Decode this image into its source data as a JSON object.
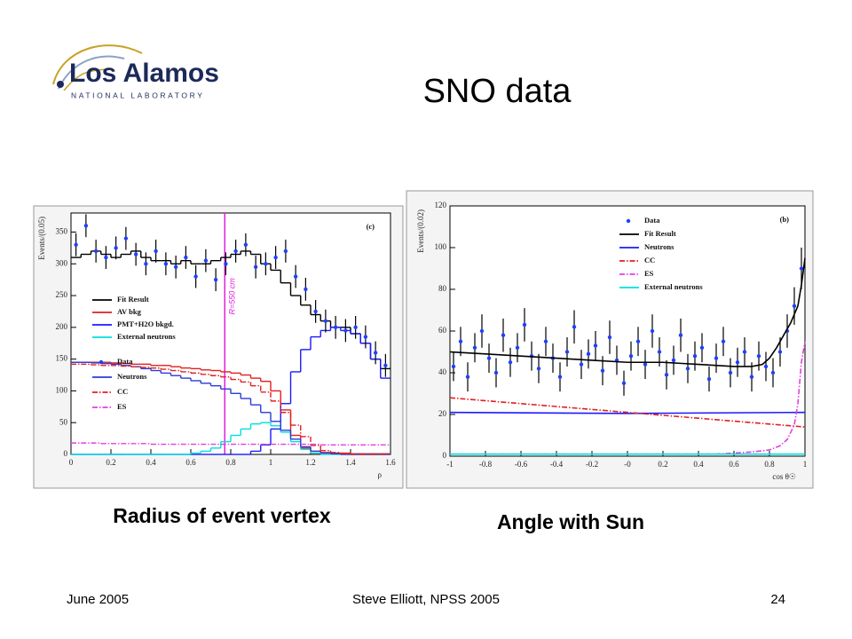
{
  "header": {
    "logo_name": "Los Alamos",
    "logo_sub": "NATIONAL LABORATORY",
    "title": "SNO data"
  },
  "chart_data": [
    {
      "type": "histogram",
      "panel_label": "(c)",
      "x_label": "ρ",
      "y_label": "Events/(0.05)",
      "xlim": [
        0,
        1.6
      ],
      "ylim": [
        0,
        380
      ],
      "xticks": [
        0,
        0.2,
        0.4,
        0.6,
        0.8,
        1,
        1.2,
        1.4,
        1.6
      ],
      "yticks": [
        0,
        50,
        100,
        150,
        200,
        250,
        300,
        350
      ],
      "bins": [
        0,
        0.05,
        0.1,
        0.15,
        0.2,
        0.25,
        0.3,
        0.35,
        0.4,
        0.45,
        0.5,
        0.55,
        0.6,
        0.65,
        0.7,
        0.75,
        0.8,
        0.85,
        0.9,
        0.95,
        1,
        1.05,
        1.1,
        1.15,
        1.2,
        1.25,
        1.3,
        1.35,
        1.4,
        1.45,
        1.5,
        1.55,
        1.6
      ],
      "annotations": [
        {
          "text": "R=550 cm",
          "x": 0.77,
          "color": "#e020e0"
        }
      ],
      "series": [
        {
          "name": "Fit Result",
          "color": "#000000",
          "style": "solid",
          "values": [
            310,
            315,
            320,
            315,
            310,
            315,
            320,
            310,
            305,
            305,
            300,
            305,
            300,
            300,
            305,
            310,
            315,
            320,
            315,
            300,
            290,
            270,
            250,
            235,
            220,
            210,
            200,
            200,
            190,
            175,
            150,
            135
          ]
        },
        {
          "name": "AV bkg",
          "color": "#e02020",
          "style": "solid",
          "values": [
            145,
            145,
            145,
            145,
            144,
            143,
            142,
            142,
            140,
            140,
            138,
            136,
            135,
            133,
            132,
            130,
            128,
            125,
            120,
            115,
            100,
            70,
            30,
            10,
            5,
            3,
            2,
            2,
            1,
            1,
            1,
            1
          ]
        },
        {
          "name": "PMT+H2O bkgd.",
          "color": "#1a1aff",
          "style": "solid",
          "values": [
            0,
            0,
            0,
            0,
            0,
            0,
            0,
            0,
            0,
            0,
            0,
            0,
            0,
            0,
            0,
            0,
            0,
            0,
            5,
            15,
            40,
            80,
            130,
            165,
            185,
            195,
            200,
            195,
            190,
            175,
            150,
            120
          ]
        },
        {
          "name": "External neutrons",
          "color": "#00e0e0",
          "style": "solid",
          "values": [
            0,
            0,
            0,
            0,
            0,
            0,
            0,
            0,
            0,
            0,
            0,
            0,
            2,
            5,
            10,
            20,
            30,
            40,
            48,
            50,
            45,
            35,
            20,
            8,
            2,
            0,
            0,
            0,
            0,
            0,
            0,
            0
          ]
        },
        {
          "name": "Data",
          "color": "#2040ff",
          "style": "points",
          "values": [
            330,
            360,
            320,
            310,
            325,
            340,
            315,
            300,
            320,
            300,
            295,
            310,
            280,
            305,
            275,
            300,
            320,
            330,
            295,
            300,
            310,
            320,
            280,
            260,
            225,
            210,
            200,
            195,
            200,
            185,
            160,
            140
          ],
          "errors": [
            18,
            18,
            18,
            18,
            18,
            18,
            18,
            18,
            18,
            18,
            18,
            18,
            18,
            18,
            18,
            18,
            18,
            18,
            18,
            18,
            18,
            18,
            18,
            18,
            18,
            18,
            18,
            18,
            18,
            18,
            18,
            18
          ]
        },
        {
          "name": "Neutrons",
          "color": "#2b3cd8",
          "style": "solid",
          "values": [
            145,
            145,
            144,
            143,
            142,
            140,
            138,
            135,
            132,
            128,
            124,
            120,
            116,
            112,
            108,
            103,
            96,
            88,
            78,
            66,
            52,
            38,
            24,
            12,
            5,
            2,
            1,
            0,
            0,
            0,
            0,
            0
          ]
        },
        {
          "name": "CC",
          "color": "#e02020",
          "style": "dash-dot",
          "values": [
            142,
            142,
            141,
            140,
            140,
            139,
            138,
            137,
            136,
            134,
            132,
            130,
            128,
            126,
            124,
            122,
            118,
            114,
            108,
            98,
            84,
            66,
            46,
            28,
            14,
            6,
            3,
            1,
            0,
            0,
            0,
            0
          ]
        },
        {
          "name": "ES",
          "color": "#e040e0",
          "style": "dash-dot",
          "values": [
            18,
            18,
            18,
            17,
            17,
            17,
            17,
            17,
            16,
            16,
            16,
            16,
            16,
            16,
            16,
            16,
            16,
            16,
            16,
            16,
            16,
            16,
            16,
            16,
            16,
            15,
            15,
            15,
            15,
            15,
            15,
            15
          ]
        }
      ]
    },
    {
      "type": "line",
      "panel_label": "(b)",
      "x_label": "cos θ☉",
      "y_label": "Events/(0.02)",
      "xlim": [
        -1,
        1
      ],
      "ylim": [
        0,
        120
      ],
      "xticks": [
        -1,
        -0.8,
        -0.6,
        -0.4,
        -0.2,
        {
          "value": 0,
          "label": "-0"
        },
        0.2,
        0.4,
        0.6,
        0.8,
        1
      ],
      "yticks": [
        0,
        20,
        40,
        60,
        80,
        100,
        120
      ],
      "series": [
        {
          "name": "Data",
          "color": "#2040ff",
          "style": "points",
          "x": [
            -0.98,
            -0.94,
            -0.9,
            -0.86,
            -0.82,
            -0.78,
            -0.74,
            -0.7,
            -0.66,
            -0.62,
            -0.58,
            -0.54,
            -0.5,
            -0.46,
            -0.42,
            -0.38,
            -0.34,
            -0.3,
            -0.26,
            -0.22,
            -0.18,
            -0.14,
            -0.1,
            -0.06,
            -0.02,
            0.02,
            0.06,
            0.1,
            0.14,
            0.18,
            0.22,
            0.26,
            0.3,
            0.34,
            0.38,
            0.42,
            0.46,
            0.5,
            0.54,
            0.58,
            0.62,
            0.66,
            0.7,
            0.74,
            0.78,
            0.82,
            0.86,
            0.9,
            0.94,
            0.98
          ],
          "values": [
            43,
            55,
            38,
            52,
            60,
            47,
            40,
            58,
            45,
            52,
            63,
            48,
            42,
            55,
            47,
            38,
            50,
            62,
            44,
            49,
            53,
            41,
            57,
            46,
            35,
            48,
            55,
            44,
            60,
            50,
            39,
            46,
            58,
            42,
            48,
            52,
            37,
            47,
            55,
            40,
            45,
            50,
            38,
            48,
            43,
            40,
            50,
            60,
            72,
            90
          ],
          "errors": [
            7,
            7,
            7,
            7,
            8,
            7,
            7,
            8,
            7,
            7,
            8,
            7,
            7,
            7,
            7,
            7,
            7,
            8,
            7,
            7,
            7,
            7,
            8,
            7,
            6,
            7,
            7,
            7,
            8,
            7,
            7,
            7,
            8,
            7,
            7,
            7,
            6,
            7,
            7,
            7,
            7,
            7,
            7,
            7,
            7,
            7,
            7,
            8,
            9,
            10
          ]
        },
        {
          "name": "Fit Result",
          "color": "#000000",
          "style": "solid",
          "x": [
            -1,
            -0.8,
            -0.6,
            -0.4,
            -0.2,
            0,
            0.2,
            0.4,
            0.6,
            0.7,
            0.76,
            0.8,
            0.84,
            0.88,
            0.92,
            0.94,
            0.96,
            0.98,
            1
          ],
          "values": [
            50,
            49,
            48,
            47,
            46,
            45,
            45,
            44,
            43,
            43,
            44,
            47,
            52,
            58,
            64,
            68,
            72,
            82,
            95
          ]
        },
        {
          "name": "Neutrons",
          "color": "#1a1aff",
          "style": "solid",
          "x": [
            -1,
            0,
            1
          ],
          "values": [
            21,
            20.5,
            21
          ]
        },
        {
          "name": "CC",
          "color": "#e02020",
          "style": "dash-dot",
          "x": [
            -1,
            1
          ],
          "values": [
            28,
            14
          ]
        },
        {
          "name": "ES",
          "color": "#e040e0",
          "style": "dash-dot",
          "x": [
            -1,
            0.5,
            0.7,
            0.8,
            0.86,
            0.9,
            0.94,
            0.96,
            0.98,
            1
          ],
          "values": [
            1,
            1,
            2,
            3,
            5,
            8,
            15,
            25,
            45,
            55
          ]
        },
        {
          "name": "External neutrons",
          "color": "#00e0e0",
          "style": "solid",
          "x": [
            -1,
            1
          ],
          "values": [
            1,
            1
          ]
        }
      ]
    }
  ],
  "captions": [
    "Radius of event vertex",
    "Angle with Sun"
  ],
  "footer": {
    "date": "June 2005",
    "author": "Steve Elliott, NPSS 2005",
    "page": "24"
  }
}
